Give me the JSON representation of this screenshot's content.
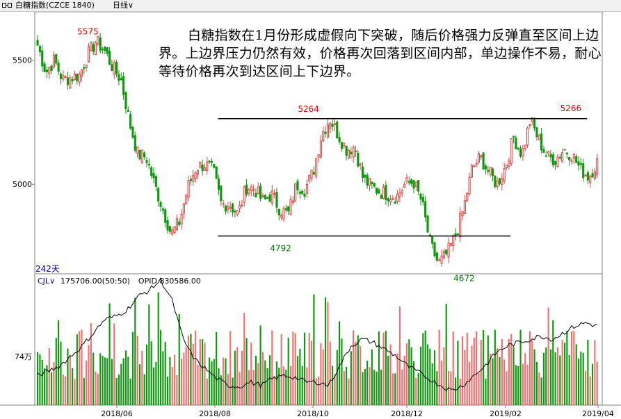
{
  "header": {
    "title": "白糖指数(CZCE 1840)",
    "period_selector": "日线",
    "icon": "link-chain-icon"
  },
  "annotation": "白糖指数在1月份形成虚假向下突破，随后价格强力反弹直至区间上边界。上边界压力仍然有效，价格再次回落到区间内部，单边操作不易，耐心等待价格再次到达区间上下边界。",
  "days_label": "242天",
  "indicator": {
    "name": "CJL",
    "volume": "175706.00(50:50)",
    "opid": "OPID 830586.00"
  },
  "colors": {
    "up": "#e84040",
    "down": "#0a9a0a",
    "line": "#000000",
    "label_red": "#e00000",
    "label_green": "#007a00",
    "axis": "#808080"
  },
  "chart_data": {
    "type": "candlestick",
    "title": "白糖指数(CZCE 1840)",
    "y_ticks": [
      5500,
      5000
    ],
    "y_range": [
      4640,
      5680
    ],
    "x_ticks": [
      "2018/06",
      "2018/08",
      "2018/10",
      "2018/12",
      "2019/02",
      "2019/04"
    ],
    "bars": 242,
    "annotated_points": [
      {
        "label": "5575",
        "value": 5575,
        "position": "2018-05 high"
      },
      {
        "label": "4792",
        "value": 4792,
        "position": "2018-07 low"
      },
      {
        "label": "5264",
        "value": 5264,
        "position": "2018-10 high"
      },
      {
        "label": "4672",
        "value": 4672,
        "position": "2019-01 low"
      },
      {
        "label": "5266",
        "value": 5266,
        "position": "2019-03 high"
      }
    ],
    "horizontal_lines": [
      {
        "level": 5264,
        "note": "range upper boundary"
      },
      {
        "level": 4792,
        "note": "range lower boundary"
      }
    ],
    "price_path": [
      5560,
      5450,
      5500,
      5420,
      5430,
      5440,
      5520,
      5575,
      5540,
      5470,
      5420,
      5250,
      5120,
      5110,
      5000,
      4900,
      4800,
      4850,
      4990,
      5070,
      5080,
      5060,
      4920,
      4920,
      4880,
      4990,
      4980,
      4930,
      4960,
      4900,
      4880,
      5000,
      4980,
      5050,
      5200,
      5264,
      5200,
      5140,
      5150,
      5020,
      4990,
      4970,
      4960,
      4950,
      5000,
      5010,
      4930,
      4760,
      4680,
      4720,
      4790,
      4900,
      5060,
      5110,
      5050,
      5000,
      5070,
      5190,
      5120,
      5260,
      5180,
      5110,
      5100,
      5140,
      5120,
      5060,
      5030,
      5090
    ],
    "volume_panel": {
      "tick_label": "74万",
      "volume_max_units": 1.9,
      "volume_baseline_units": 0.74,
      "open_interest_path": [
        0.45,
        0.52,
        0.6,
        0.75,
        0.9,
        1.1,
        1.3,
        1.35,
        1.45,
        1.65,
        1.75,
        1.9,
        1.6,
        1.0,
        0.7,
        0.55,
        0.4,
        0.3,
        0.28,
        0.35,
        0.3,
        0.4,
        0.45,
        0.42,
        0.35,
        0.35,
        0.3,
        0.6,
        0.9,
        1.0,
        0.95,
        0.85,
        0.75,
        0.6,
        0.5,
        0.4,
        0.3,
        0.22,
        0.3,
        0.45,
        0.6,
        0.8,
        0.9,
        0.95,
        1.0,
        1.05,
        1.0,
        1.1,
        1.2,
        1.25,
        1.2
      ]
    }
  }
}
